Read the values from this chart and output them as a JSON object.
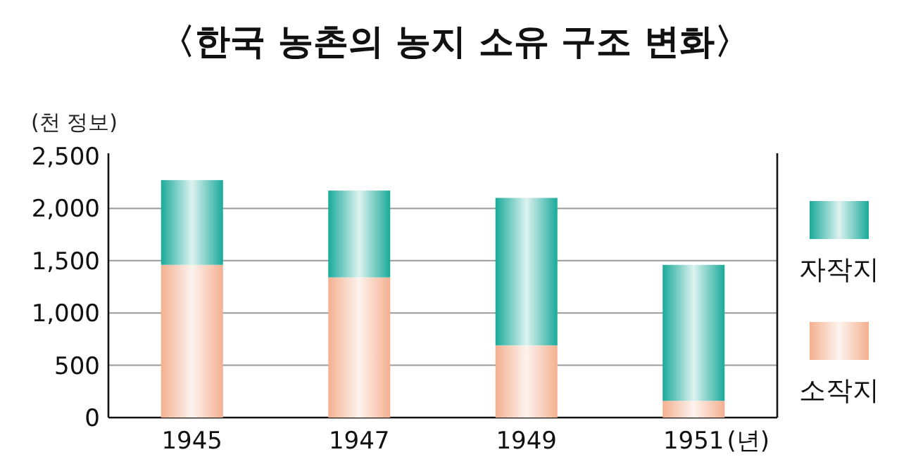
{
  "chart_data": {
    "type": "bar",
    "title": "〈한국 농촌의 농지 소유 구조 변화〉",
    "ylabel": "(천 정보)",
    "xlabel": "(년)",
    "categories": [
      "1945",
      "1947",
      "1949",
      "1951"
    ],
    "stacked": true,
    "series": [
      {
        "name": "소작지",
        "color": "#f4b090",
        "values": [
          1460,
          1340,
          690,
          160
        ]
      },
      {
        "name": "자작지",
        "color": "#1aaa9a",
        "values": [
          810,
          830,
          1410,
          1300
        ]
      }
    ],
    "ylim": [
      0,
      2500
    ],
    "yticks": [
      {
        "value": 0,
        "label": "0"
      },
      {
        "value": 500,
        "label": "500"
      },
      {
        "value": 1000,
        "label": "1,000"
      },
      {
        "value": 1500,
        "label": "1,500"
      },
      {
        "value": 2000,
        "label": "2,000"
      },
      {
        "value": 2500,
        "label": "2,500"
      }
    ],
    "grid": "y",
    "legend": "right"
  }
}
